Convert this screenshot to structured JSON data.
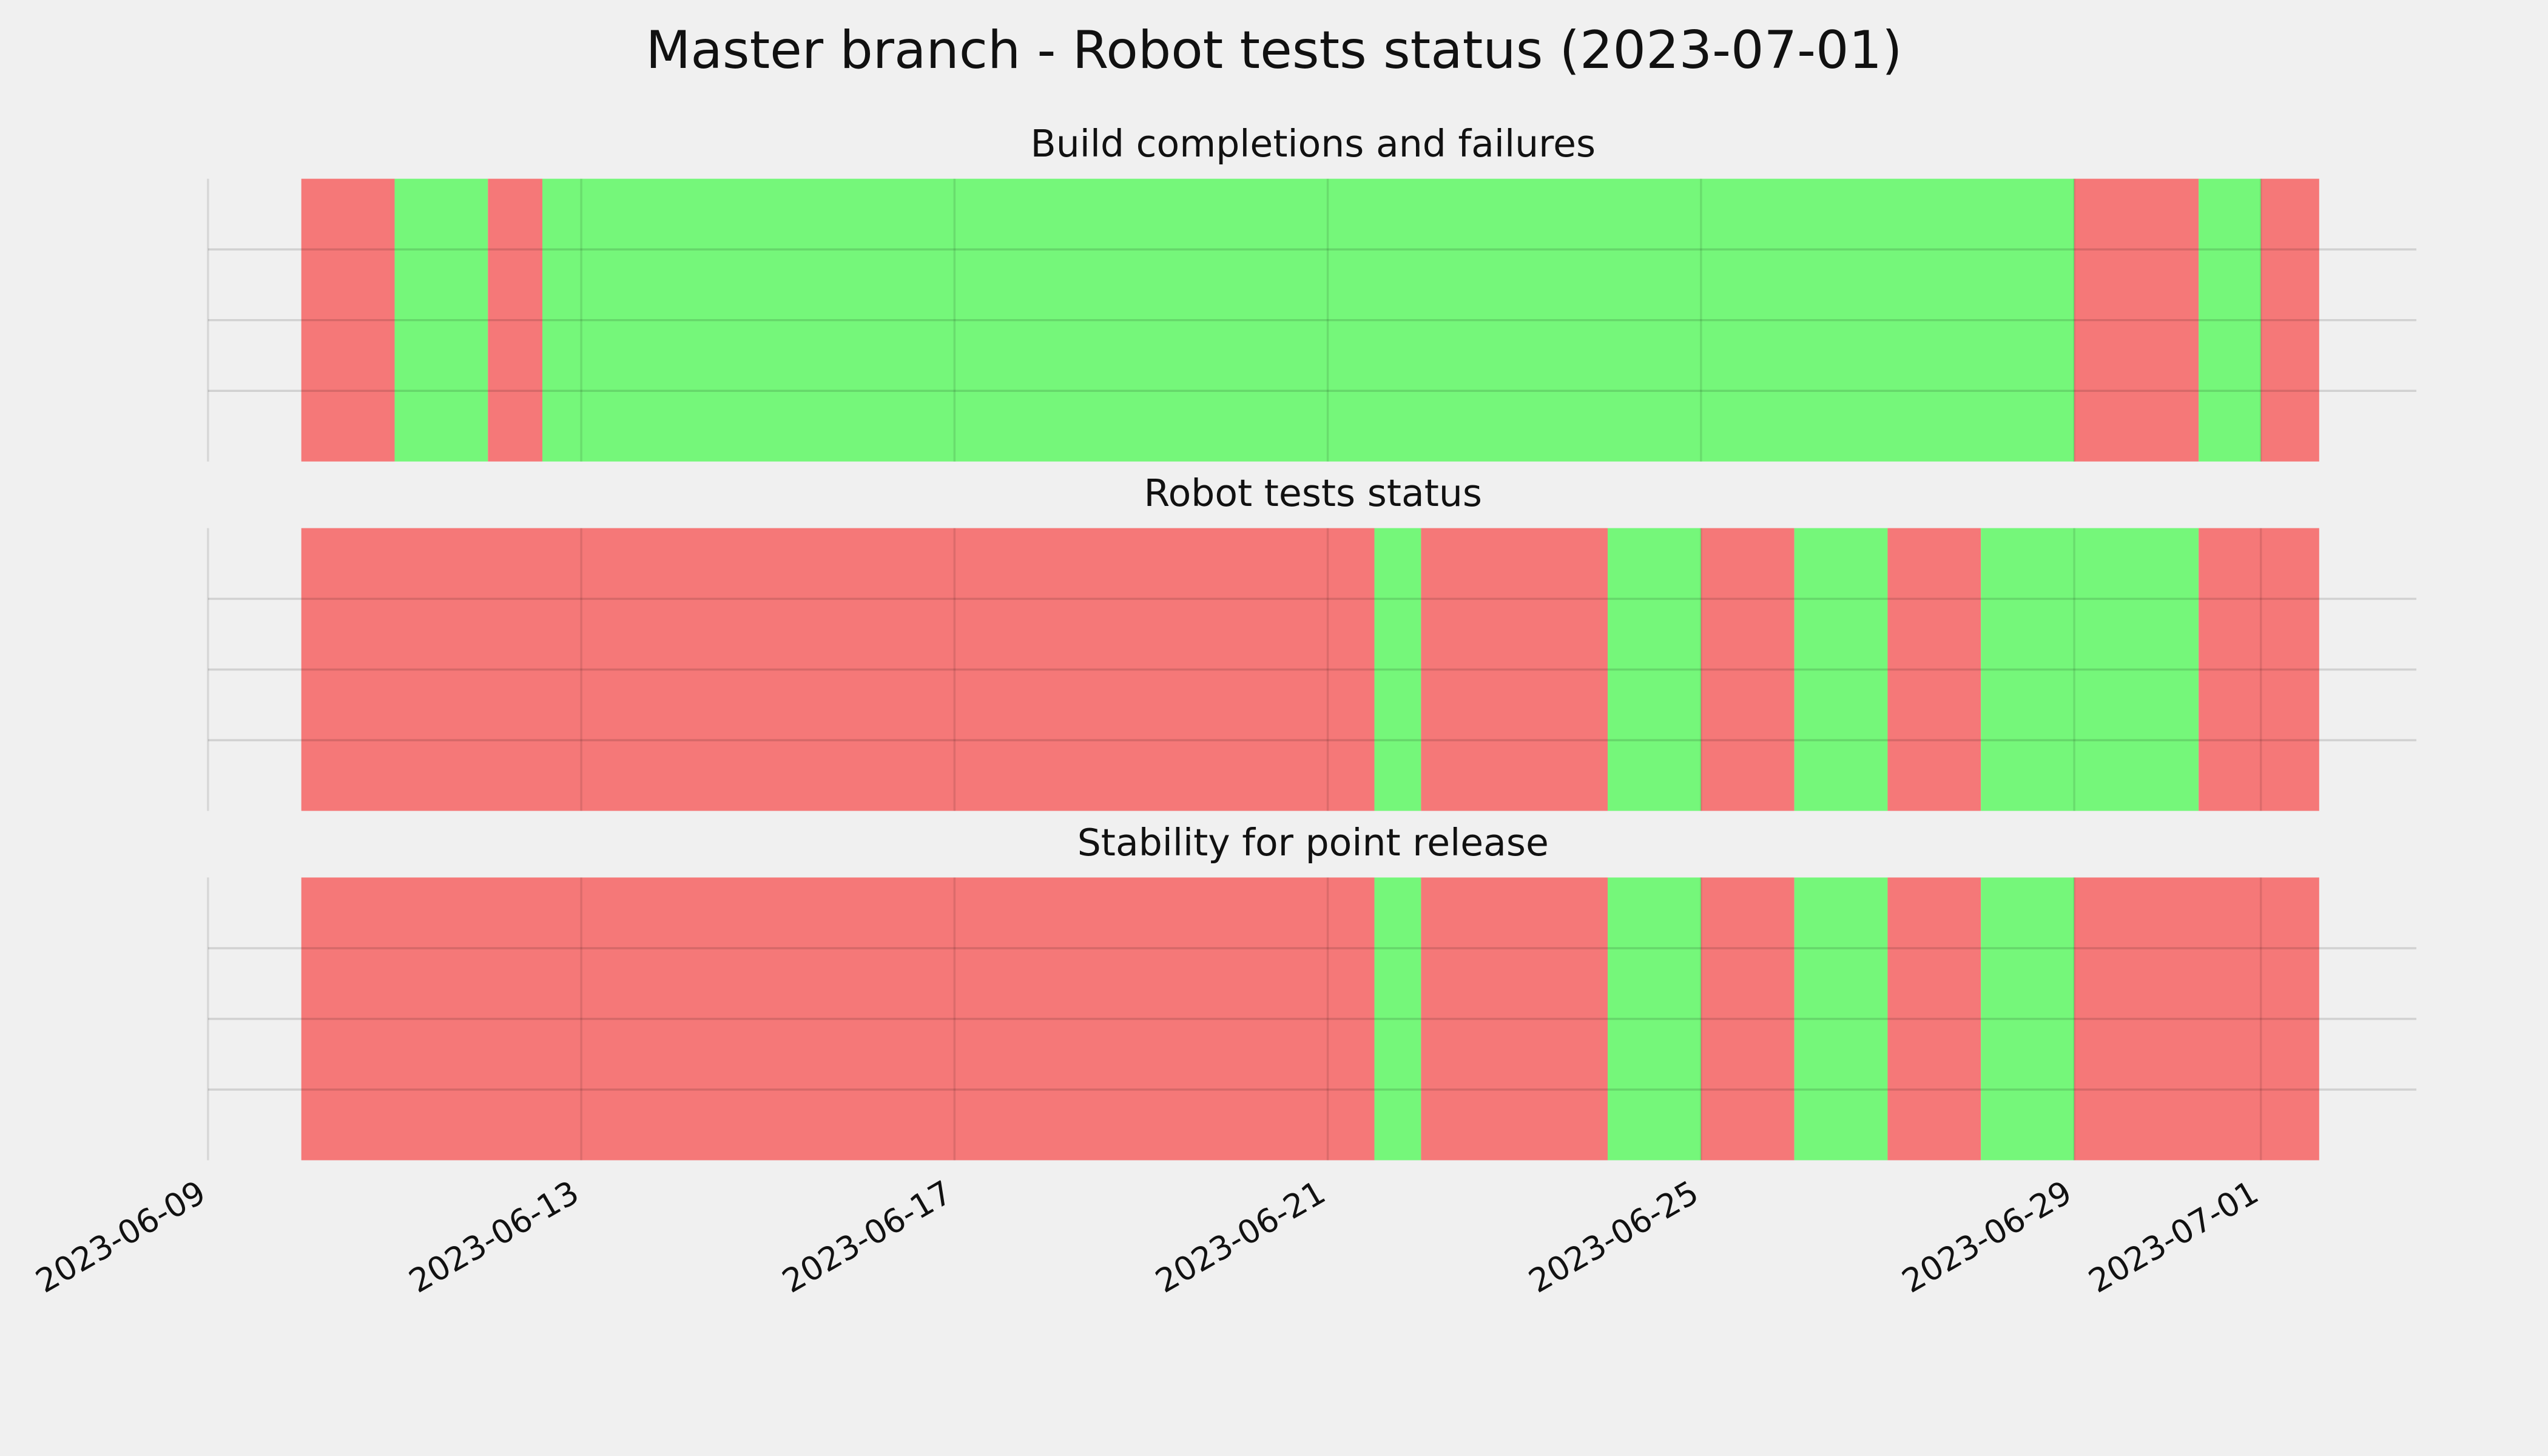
{
  "title": "Master branch - Robot tests status (2023-07-01)",
  "chart_data": [
    {
      "type": "timeline",
      "title": "Build completions and failures",
      "xlim": [
        "2023-06-09",
        "2023-07-02T16:00"
      ],
      "xticks": [
        "2023-06-09",
        "2023-06-13",
        "2023-06-17",
        "2023-06-21",
        "2023-06-25",
        "2023-06-29",
        "2023-07-01"
      ],
      "ylim": [
        0,
        1
      ],
      "yticks": [
        0.25,
        0.5,
        0.75
      ],
      "grid": true,
      "segments": [
        {
          "start": "2023-06-10",
          "end": "2023-06-11",
          "color": "#f57878"
        },
        {
          "start": "2023-06-11",
          "end": "2023-06-12",
          "color": "#75f77a"
        },
        {
          "start": "2023-06-12",
          "end": "2023-06-12T14:00",
          "color": "#f57878"
        },
        {
          "start": "2023-06-12T14:00",
          "end": "2023-06-29",
          "color": "#75f77a"
        },
        {
          "start": "2023-06-29",
          "end": "2023-06-30T08:00",
          "color": "#f57878"
        },
        {
          "start": "2023-06-30T08:00",
          "end": "2023-07-01",
          "color": "#75f77a"
        },
        {
          "start": "2023-07-01",
          "end": "2023-07-01T15:00",
          "color": "#f57878"
        }
      ]
    },
    {
      "type": "timeline",
      "title": "Robot tests status",
      "xlim": [
        "2023-06-09",
        "2023-07-02T16:00"
      ],
      "xticks": [
        "2023-06-09",
        "2023-06-13",
        "2023-06-17",
        "2023-06-21",
        "2023-06-25",
        "2023-06-29",
        "2023-07-01"
      ],
      "ylim": [
        0,
        1
      ],
      "yticks": [
        0.25,
        0.5,
        0.75
      ],
      "grid": true,
      "segments": [
        {
          "start": "2023-06-10",
          "end": "2023-06-21T12:00",
          "color": "#f57878"
        },
        {
          "start": "2023-06-21T12:00",
          "end": "2023-06-22",
          "color": "#75f77a"
        },
        {
          "start": "2023-06-22",
          "end": "2023-06-24",
          "color": "#f57878"
        },
        {
          "start": "2023-06-24",
          "end": "2023-06-25",
          "color": "#75f77a"
        },
        {
          "start": "2023-06-25",
          "end": "2023-06-26",
          "color": "#f57878"
        },
        {
          "start": "2023-06-26",
          "end": "2023-06-27",
          "color": "#75f77a"
        },
        {
          "start": "2023-06-27",
          "end": "2023-06-28",
          "color": "#f57878"
        },
        {
          "start": "2023-06-28",
          "end": "2023-06-30T08:00",
          "color": "#75f77a"
        },
        {
          "start": "2023-06-30T08:00",
          "end": "2023-07-01T15:00",
          "color": "#f57878"
        }
      ]
    },
    {
      "type": "timeline",
      "title": "Stability for point release",
      "xlim": [
        "2023-06-09",
        "2023-07-02T16:00"
      ],
      "xticks": [
        "2023-06-09",
        "2023-06-13",
        "2023-06-17",
        "2023-06-21",
        "2023-06-25",
        "2023-06-29",
        "2023-07-01"
      ],
      "ylim": [
        0,
        1
      ],
      "yticks": [
        0.25,
        0.5,
        0.75
      ],
      "grid": true,
      "segments": [
        {
          "start": "2023-06-10",
          "end": "2023-06-21T12:00",
          "color": "#f57878"
        },
        {
          "start": "2023-06-21T12:00",
          "end": "2023-06-22",
          "color": "#75f77a"
        },
        {
          "start": "2023-06-22",
          "end": "2023-06-24",
          "color": "#f57878"
        },
        {
          "start": "2023-06-24",
          "end": "2023-06-25",
          "color": "#75f77a"
        },
        {
          "start": "2023-06-25",
          "end": "2023-06-26",
          "color": "#f57878"
        },
        {
          "start": "2023-06-26",
          "end": "2023-06-27",
          "color": "#75f77a"
        },
        {
          "start": "2023-06-27",
          "end": "2023-06-28",
          "color": "#f57878"
        },
        {
          "start": "2023-06-28",
          "end": "2023-06-29",
          "color": "#75f77a"
        },
        {
          "start": "2023-06-29",
          "end": "2023-07-01T15:00",
          "color": "#f57878"
        }
      ]
    }
  ]
}
